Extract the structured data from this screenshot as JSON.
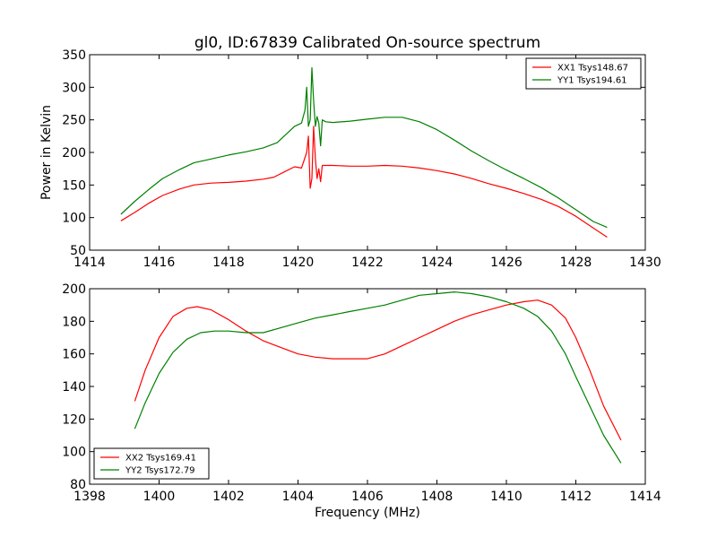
{
  "chart_data": [
    {
      "type": "line",
      "title": "gl0, ID:67839 Calibrated On-source spectrum",
      "xlabel": "",
      "ylabel": "Power in Kelvin",
      "xlim": [
        1414,
        1430
      ],
      "ylim": [
        50,
        350
      ],
      "xticks": [
        1414,
        1416,
        1418,
        1420,
        1422,
        1424,
        1426,
        1428,
        1430
      ],
      "yticks": [
        50,
        100,
        150,
        200,
        250,
        300,
        350
      ],
      "grid": false,
      "legend": "top-right",
      "series": [
        {
          "name": "XX1 Tsys148.67",
          "color": "#ff0000",
          "x": [
            1414.9,
            1415.3,
            1415.7,
            1416.1,
            1416.6,
            1417.0,
            1417.5,
            1418.0,
            1418.5,
            1419.0,
            1419.3,
            1419.6,
            1419.9,
            1420.1,
            1420.25,
            1420.3,
            1420.35,
            1420.4,
            1420.45,
            1420.5,
            1420.55,
            1420.6,
            1420.65,
            1420.7,
            1420.8,
            1421.0,
            1421.5,
            1422.0,
            1422.5,
            1423.0,
            1423.5,
            1424.0,
            1424.5,
            1425.0,
            1425.5,
            1426.0,
            1426.5,
            1427.0,
            1427.5,
            1428.0,
            1428.5,
            1428.9
          ],
          "y": [
            95,
            108,
            122,
            134,
            144,
            150,
            153,
            154,
            156,
            159,
            162,
            170,
            178,
            176,
            200,
            225,
            145,
            160,
            240,
            190,
            160,
            175,
            155,
            180,
            180,
            180,
            179,
            179,
            180,
            179,
            176,
            172,
            167,
            160,
            152,
            145,
            137,
            128,
            117,
            102,
            84,
            70
          ]
        },
        {
          "name": "YY1 Tsys194.61",
          "color": "#008000",
          "x": [
            1414.9,
            1415.3,
            1415.7,
            1416.1,
            1416.6,
            1417.0,
            1417.5,
            1418.0,
            1418.5,
            1419.0,
            1419.4,
            1419.7,
            1419.9,
            1420.1,
            1420.2,
            1420.25,
            1420.3,
            1420.35,
            1420.4,
            1420.45,
            1420.5,
            1420.55,
            1420.6,
            1420.65,
            1420.7,
            1420.8,
            1421.0,
            1421.5,
            1422.0,
            1422.5,
            1423.0,
            1423.5,
            1424.0,
            1424.5,
            1425.0,
            1425.5,
            1426.0,
            1426.5,
            1427.0,
            1427.5,
            1428.0,
            1428.5,
            1428.9
          ],
          "y": [
            105,
            125,
            143,
            160,
            174,
            184,
            190,
            196,
            201,
            207,
            215,
            230,
            240,
            245,
            265,
            300,
            240,
            250,
            330,
            280,
            240,
            255,
            245,
            210,
            250,
            247,
            246,
            248,
            251,
            254,
            254,
            247,
            235,
            219,
            202,
            187,
            173,
            160,
            146,
            130,
            112,
            94,
            85
          ]
        }
      ]
    },
    {
      "type": "line",
      "title": "",
      "xlabel": "Frequency (MHz)",
      "ylabel": "",
      "xlim": [
        1398,
        1414
      ],
      "ylim": [
        80,
        200
      ],
      "xticks": [
        1398,
        1400,
        1402,
        1404,
        1406,
        1408,
        1410,
        1412,
        1414
      ],
      "yticks": [
        80,
        100,
        120,
        140,
        160,
        180,
        200
      ],
      "grid": false,
      "legend": "bottom-left",
      "series": [
        {
          "name": "XX2 Tsys169.41",
          "color": "#ff0000",
          "x": [
            1399.3,
            1399.6,
            1400.0,
            1400.4,
            1400.8,
            1401.1,
            1401.5,
            1402.0,
            1402.5,
            1403.0,
            1403.5,
            1404.0,
            1404.5,
            1405.0,
            1405.5,
            1406.0,
            1406.5,
            1407.0,
            1407.5,
            1408.0,
            1408.5,
            1409.0,
            1409.5,
            1410.0,
            1410.5,
            1410.9,
            1411.3,
            1411.7,
            1412.0,
            1412.4,
            1412.8,
            1413.3
          ],
          "y": [
            131,
            150,
            170,
            183,
            188,
            189,
            187,
            181,
            174,
            168,
            164,
            160,
            158,
            157,
            157,
            157,
            160,
            165,
            170,
            175,
            180,
            184,
            187,
            190,
            192,
            193,
            190,
            182,
            170,
            150,
            128,
            107
          ]
        },
        {
          "name": "YY2 Tsys172.79",
          "color": "#008000",
          "x": [
            1399.3,
            1399.6,
            1400.0,
            1400.4,
            1400.8,
            1401.2,
            1401.6,
            1402.0,
            1402.5,
            1403.0,
            1403.5,
            1404.0,
            1404.5,
            1405.0,
            1405.5,
            1406.0,
            1406.5,
            1407.0,
            1407.5,
            1408.0,
            1408.5,
            1409.0,
            1409.5,
            1410.0,
            1410.5,
            1410.9,
            1411.3,
            1411.7,
            1412.0,
            1412.4,
            1412.8,
            1413.3
          ],
          "y": [
            114,
            130,
            148,
            161,
            169,
            173,
            174,
            174,
            173,
            173,
            176,
            179,
            182,
            184,
            186,
            188,
            190,
            193,
            196,
            197,
            198,
            197,
            195,
            192,
            188,
            183,
            174,
            160,
            146,
            128,
            110,
            93
          ]
        }
      ]
    }
  ]
}
